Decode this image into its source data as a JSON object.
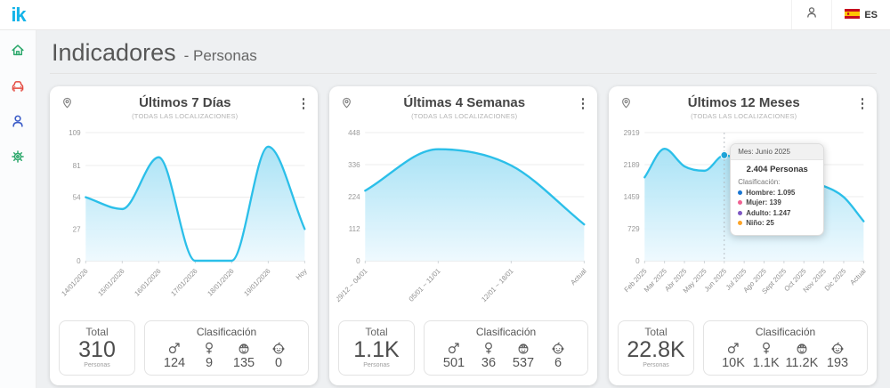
{
  "app": {
    "logo_text": "ik",
    "topbar": {
      "language": "ES"
    }
  },
  "sidebar": {
    "items": [
      {
        "name": "home",
        "icon": "home-icon",
        "color": "#2aa76a"
      },
      {
        "name": "vehicles",
        "icon": "car-icon",
        "color": "#e4483e"
      },
      {
        "name": "persons",
        "icon": "person-icon",
        "color": "#3a5bc7"
      },
      {
        "name": "settings",
        "icon": "gear-icon",
        "color": "#2aa76a"
      }
    ]
  },
  "header": {
    "title": "Indicadores",
    "subtitle": "- Personas"
  },
  "colors": {
    "brand": "#14b4e9",
    "chart_line": "#2bbfe9",
    "chart_fill_top": "#a5e1f5",
    "chart_fill_bottom": "#eef9fe"
  },
  "cards": [
    {
      "title": "Últimos 7 Días",
      "subtitle": "(TODAS LAS LOCALIZACIONES)",
      "stats": {
        "total_label": "Total",
        "total_value": "310",
        "total_unit": "Personas",
        "classification_label": "Clasificación",
        "items": [
          {
            "icon": "male-icon",
            "value": "124"
          },
          {
            "icon": "female-icon",
            "value": "9"
          },
          {
            "icon": "adult-icon",
            "value": "135"
          },
          {
            "icon": "child-icon",
            "value": "0"
          }
        ]
      }
    },
    {
      "title": "Últimas 4 Semanas",
      "subtitle": "(TODAS LAS LOCALIZACIONES)",
      "stats": {
        "total_label": "Total",
        "total_value": "1.1K",
        "total_unit": "Personas",
        "classification_label": "Clasificación",
        "items": [
          {
            "icon": "male-icon",
            "value": "501"
          },
          {
            "icon": "female-icon",
            "value": "36"
          },
          {
            "icon": "adult-icon",
            "value": "537"
          },
          {
            "icon": "child-icon",
            "value": "6"
          }
        ]
      }
    },
    {
      "title": "Últimos 12 Meses",
      "subtitle": "(TODAS LAS LOCALIZACIONES)",
      "tooltip": {
        "title": "Mes: Junio 2025",
        "total": "2.404 Personas",
        "classification_label": "Clasificación:",
        "items": [
          {
            "label": "Hombre: 1.095",
            "color": "#1976d2"
          },
          {
            "label": "Mujer: 139",
            "color": "#f06292"
          },
          {
            "label": "Adulto: 1.247",
            "color": "#7e57c2"
          },
          {
            "label": "Niño: 25",
            "color": "#fca326"
          }
        ]
      },
      "stats": {
        "total_label": "Total",
        "total_value": "22.8K",
        "total_unit": "Personas",
        "classification_label": "Clasificación",
        "items": [
          {
            "icon": "male-icon",
            "value": "10K"
          },
          {
            "icon": "female-icon",
            "value": "1.1K"
          },
          {
            "icon": "adult-icon",
            "value": "11.2K"
          },
          {
            "icon": "child-icon",
            "value": "193"
          }
        ]
      }
    }
  ],
  "chart_data": [
    {
      "type": "area",
      "title": "Últimos 7 Días",
      "categories": [
        "14/01/2026",
        "15/01/2026",
        "16/01/2026",
        "17/01/2026",
        "18/01/2026",
        "19/01/2026",
        "Hoy"
      ],
      "values": [
        54,
        44,
        88,
        0,
        0,
        97,
        27
      ],
      "yticks": [
        109,
        81,
        54,
        27,
        0
      ],
      "ylim": [
        0,
        109
      ],
      "grid": true,
      "legend": "none"
    },
    {
      "type": "area",
      "title": "Últimas 4 Semanas",
      "categories": [
        "29/12 ~ 04/01",
        "05/01 ~ 11/01",
        "12/01 ~ 18/01",
        "Actual"
      ],
      "values": [
        245,
        390,
        333,
        127
      ],
      "yticks": [
        448,
        336,
        224,
        112,
        0
      ],
      "ylim": [
        0,
        448
      ],
      "grid": true,
      "legend": "none"
    },
    {
      "type": "area",
      "title": "Últimos 12 Meses",
      "categories": [
        "Feb 2025",
        "Mar 2025",
        "Abr 2025",
        "May 2025",
        "Jun 2025",
        "Jul 2025",
        "Ago 2025",
        "Sept 2025",
        "Oct 2025",
        "Nov 2025",
        "Dic 2025",
        "Actual"
      ],
      "values": [
        1900,
        2550,
        2150,
        2050,
        2404,
        2250,
        2100,
        1950,
        1800,
        1700,
        1450,
        900
      ],
      "yticks": [
        2919,
        2189,
        1459,
        729,
        0
      ],
      "ylim": [
        0,
        2919
      ],
      "grid": true,
      "legend": "none",
      "highlight": {
        "index": 4,
        "value": 2404,
        "label": "Jun 2025"
      }
    }
  ]
}
